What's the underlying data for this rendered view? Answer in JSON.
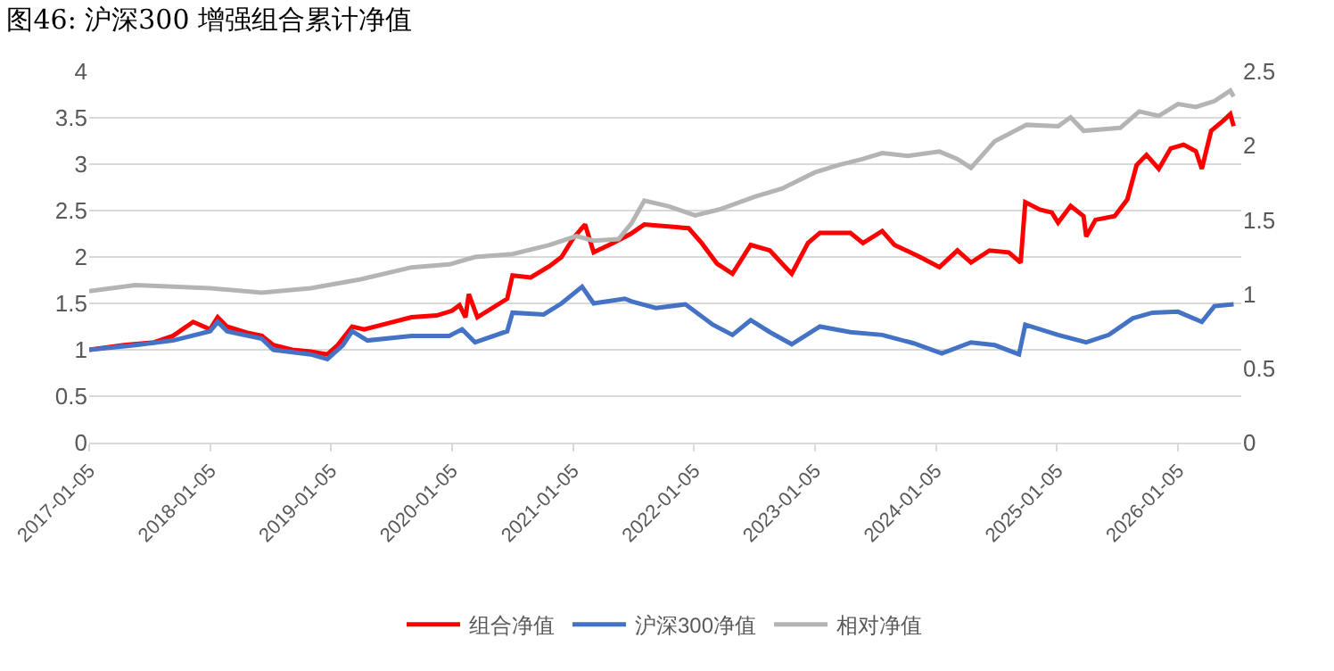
{
  "chart_data": {
    "type": "line",
    "title": "图46: 沪深300 增强组合累计净值",
    "xlim": [
      "2017-01-05",
      "2026-07-15"
    ],
    "xticks": [
      {
        "value": "2017-01-05",
        "label": "2017-01-05"
      },
      {
        "value": "2018-01-05",
        "label": "2018-01-05"
      },
      {
        "value": "2019-01-05",
        "label": "2019-01-05"
      },
      {
        "value": "2020-01-05",
        "label": "2020-01-05"
      },
      {
        "value": "2021-01-05",
        "label": "2021-01-05"
      },
      {
        "value": "2022-01-05",
        "label": "2022-01-05"
      },
      {
        "value": "2023-01-05",
        "label": "2023-01-05"
      },
      {
        "value": "2024-01-05",
        "label": "2024-01-05"
      },
      {
        "value": "2025-01-05",
        "label": "2025-01-05"
      },
      {
        "value": "2026-01-05",
        "label": "2026-01-05"
      }
    ],
    "ylim": [
      0,
      4
    ],
    "yticks": [
      0,
      0.5,
      1,
      1.5,
      2,
      2.5,
      3,
      3.5,
      4
    ],
    "y2lim": [
      0,
      2.5
    ],
    "y2ticks": [
      0,
      0.5,
      1,
      1.5,
      2,
      2.5
    ],
    "grid": "y",
    "legend": "bottom",
    "marker": "none",
    "line_style": "solid",
    "series": [
      {
        "name": "组合净值",
        "color": "#ff0000",
        "x": [
          "2017-01-05",
          "2017-04-20",
          "2017-07-20",
          "2017-09-15",
          "2017-11-15",
          "2018-01-05",
          "2018-01-28",
          "2018-02-25",
          "2018-05-01",
          "2018-06-10",
          "2018-07-15",
          "2018-09-10",
          "2018-11-05",
          "2018-12-25",
          "2019-01-25",
          "2019-03-10",
          "2019-04-15",
          "2019-06-20",
          "2019-09-05",
          "2019-11-20",
          "2020-01-05",
          "2020-01-28",
          "2020-02-15",
          "2020-02-25",
          "2020-03-22",
          "2020-06-20",
          "2020-07-06",
          "2020-08-30",
          "2020-10-25",
          "2020-12-01",
          "2021-01-05",
          "2021-02-10",
          "2021-03-08",
          "2021-05-05",
          "2021-06-28",
          "2021-08-08",
          "2021-12-20",
          "2022-01-28",
          "2022-03-15",
          "2022-05-01",
          "2022-06-25",
          "2022-08-22",
          "2022-10-08",
          "2022-10-27",
          "2022-12-15",
          "2023-01-20",
          "2023-04-22",
          "2023-05-30",
          "2023-07-27",
          "2023-09-02",
          "2023-11-18",
          "2024-01-16",
          "2024-03-10",
          "2024-04-20",
          "2024-06-15",
          "2024-08-12",
          "2024-09-17",
          "2024-10-01",
          "2024-11-14",
          "2024-12-20",
          "2025-01-08",
          "2025-02-15",
          "2025-03-26",
          "2025-04-03",
          "2025-05-01",
          "2025-06-28",
          "2025-08-05",
          "2025-09-02",
          "2025-10-02",
          "2025-11-08",
          "2025-12-14",
          "2026-01-22",
          "2026-02-28",
          "2026-03-18",
          "2026-04-15",
          "2026-05-22",
          "2026-06-12",
          "2026-06-22"
        ],
        "values": [
          1.0,
          1.05,
          1.08,
          1.15,
          1.3,
          1.22,
          1.35,
          1.25,
          1.18,
          1.15,
          1.05,
          1.0,
          0.98,
          0.95,
          1.05,
          1.25,
          1.22,
          1.28,
          1.35,
          1.37,
          1.42,
          1.48,
          1.35,
          1.6,
          1.35,
          1.55,
          1.8,
          1.78,
          1.9,
          2.0,
          2.2,
          2.35,
          2.05,
          2.15,
          2.25,
          2.35,
          2.31,
          2.15,
          1.93,
          1.82,
          2.13,
          2.07,
          1.89,
          1.82,
          2.15,
          2.26,
          2.26,
          2.15,
          2.28,
          2.13,
          2.0,
          1.89,
          2.07,
          1.94,
          2.07,
          2.05,
          1.94,
          2.59,
          2.51,
          2.48,
          2.37,
          2.55,
          2.44,
          2.22,
          2.4,
          2.44,
          2.62,
          2.99,
          3.1,
          2.95,
          3.17,
          3.21,
          3.14,
          2.95,
          3.36,
          3.47,
          3.54,
          3.41
        ]
      },
      {
        "name": "沪深300净值",
        "color": "#4472c4",
        "x": [
          "2017-01-05",
          "2017-05-25",
          "2017-09-15",
          "2018-01-05",
          "2018-01-28",
          "2018-02-25",
          "2018-06-10",
          "2018-07-15",
          "2018-11-05",
          "2018-12-25",
          "2019-02-10",
          "2019-03-10",
          "2019-04-25",
          "2019-09-05",
          "2019-12-28",
          "2020-02-05",
          "2020-03-15",
          "2020-06-20",
          "2020-07-06",
          "2020-10-08",
          "2020-12-01",
          "2021-02-01",
          "2021-03-08",
          "2021-06-10",
          "2021-07-01",
          "2021-09-12",
          "2021-12-10",
          "2022-03-03",
          "2022-05-01",
          "2022-06-25",
          "2022-08-22",
          "2022-10-27",
          "2023-01-20",
          "2023-04-22",
          "2023-07-27",
          "2023-10-30",
          "2024-01-23",
          "2024-04-20",
          "2024-07-01",
          "2024-09-12",
          "2024-10-01",
          "2025-01-08",
          "2025-04-03",
          "2025-06-10",
          "2025-08-22",
          "2025-10-20",
          "2026-01-05",
          "2026-03-18",
          "2026-04-25",
          "2026-06-22"
        ],
        "values": [
          1.0,
          1.05,
          1.1,
          1.2,
          1.3,
          1.2,
          1.12,
          1.0,
          0.95,
          0.9,
          1.05,
          1.2,
          1.1,
          1.15,
          1.15,
          1.22,
          1.08,
          1.2,
          1.4,
          1.38,
          1.5,
          1.68,
          1.5,
          1.55,
          1.52,
          1.45,
          1.49,
          1.27,
          1.16,
          1.32,
          1.19,
          1.06,
          1.25,
          1.19,
          1.16,
          1.07,
          0.96,
          1.08,
          1.05,
          0.95,
          1.27,
          1.16,
          1.08,
          1.16,
          1.34,
          1.4,
          1.41,
          1.3,
          1.47,
          1.49
        ]
      },
      {
        "name": "相对净值",
        "color": "#b4b4b4",
        "axis": "y2",
        "x": [
          "2017-01-05",
          "2017-05-25",
          "2018-01-05",
          "2018-06-10",
          "2018-11-05",
          "2019-04-05",
          "2019-09-05",
          "2019-12-28",
          "2020-03-15",
          "2020-07-06",
          "2020-10-25",
          "2021-01-15",
          "2021-03-08",
          "2021-05-22",
          "2021-07-01",
          "2021-08-08",
          "2021-10-22",
          "2022-01-08",
          "2022-03-22",
          "2022-07-12",
          "2022-09-27",
          "2023-01-05",
          "2023-03-18",
          "2023-05-30",
          "2023-07-27",
          "2023-10-12",
          "2024-01-16",
          "2024-03-10",
          "2024-04-20",
          "2024-07-01",
          "2024-10-05",
          "2025-01-08",
          "2025-02-15",
          "2025-03-26",
          "2025-07-15",
          "2025-09-10",
          "2025-11-08",
          "2026-01-05",
          "2026-02-28",
          "2026-04-25",
          "2026-06-12",
          "2026-06-22"
        ],
        "values": [
          1.02,
          1.06,
          1.04,
          1.01,
          1.04,
          1.1,
          1.18,
          1.2,
          1.25,
          1.27,
          1.33,
          1.39,
          1.36,
          1.37,
          1.48,
          1.63,
          1.59,
          1.53,
          1.57,
          1.66,
          1.71,
          1.82,
          1.87,
          1.91,
          1.95,
          1.93,
          1.96,
          1.91,
          1.85,
          2.03,
          2.14,
          2.13,
          2.19,
          2.1,
          2.12,
          2.23,
          2.2,
          2.28,
          2.26,
          2.3,
          2.37,
          2.33
        ]
      }
    ]
  }
}
